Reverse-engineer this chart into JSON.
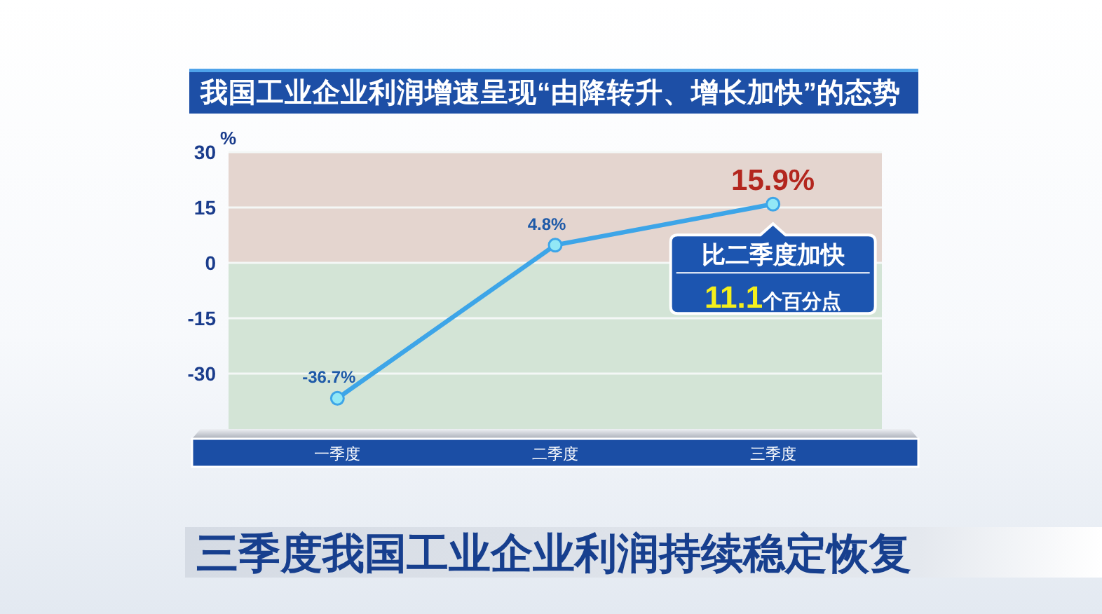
{
  "chart_data": {
    "type": "line",
    "title": "我国工业企业利润增速呈现“由降转升、增长加快”的态势",
    "ylabel": "%",
    "categories": [
      "一季度",
      "二季度",
      "三季度"
    ],
    "series": [
      {
        "color": "#3da5e8",
        "values": [
          -36.7,
          4.8,
          15.9
        ],
        "value_labels": [
          "-36.7%",
          "4.8%",
          "15.9%"
        ]
      }
    ],
    "ylim": [
      -45,
      30
    ],
    "yticks": [
      30,
      15,
      0,
      -15,
      -30
    ],
    "grid": "y",
    "marker": "circle",
    "line_style": "solid",
    "bands": [
      {
        "axis": "y",
        "from": 0,
        "to": 30,
        "color": "#e4d5cf"
      },
      {
        "axis": "y",
        "from": -45,
        "to": 0,
        "color": "#d3e4d6"
      }
    ],
    "annotations": [
      {
        "text": "比二季度加快",
        "x": "三季度",
        "y": 15.9
      },
      {
        "text": "**11.1**个百分点",
        "x": "三季度",
        "y": 15.9
      },
      "三季度我国工业企业利润持续稳定恢复"
    ]
  }
}
